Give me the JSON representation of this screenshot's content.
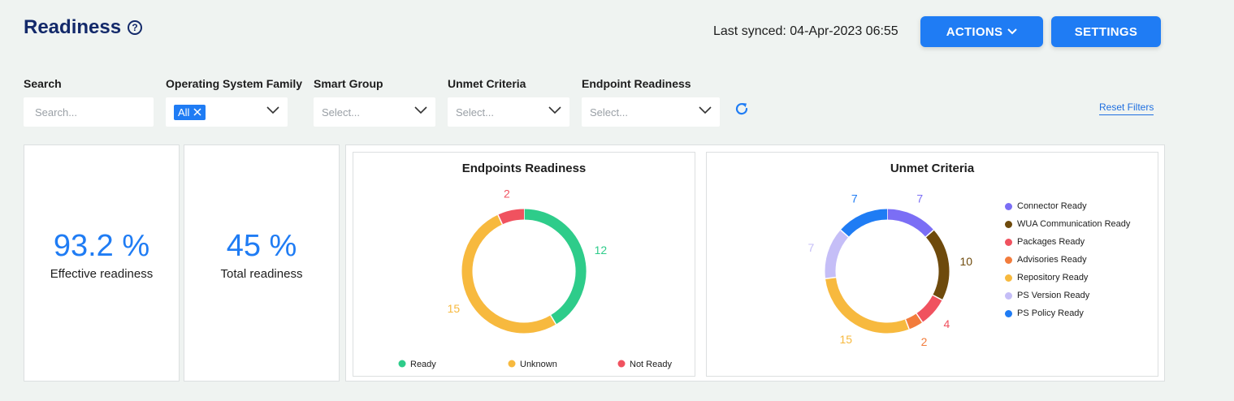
{
  "header": {
    "title": "Readiness",
    "help_icon": "?",
    "last_synced": "Last synced: 04-Apr-2023 06:55",
    "actions_label": "ACTIONS",
    "settings_label": "SETTINGS"
  },
  "filters": {
    "search": {
      "label": "Search",
      "placeholder": "Search..."
    },
    "os_family": {
      "label": "Operating System Family",
      "selected_tag": "All"
    },
    "smart_group": {
      "label": "Smart Group",
      "placeholder": "Select..."
    },
    "unmet_criteria": {
      "label": "Unmet Criteria",
      "placeholder": "Select..."
    },
    "endpoint_readiness": {
      "label": "Endpoint Readiness",
      "placeholder": "Select..."
    },
    "reset_label": "Reset Filters"
  },
  "stats": {
    "effective": {
      "value": "93.2 %",
      "label": "Effective readiness"
    },
    "total": {
      "value": "45 %",
      "label": "Total readiness"
    }
  },
  "colors": {
    "accent": "#1f7cf4",
    "title": "#13296a"
  },
  "chart_data": [
    {
      "type": "pie",
      "title": "Endpoints Readiness",
      "categories": [
        "Ready",
        "Unknown",
        "Not Ready"
      ],
      "values": [
        12,
        15,
        2
      ],
      "colors": [
        "#2ecc8a",
        "#f7b93e",
        "#f0525f"
      ],
      "legend": "bottom"
    },
    {
      "type": "pie",
      "title": "Unmet Criteria",
      "categories": [
        "Connector Ready",
        "WUA Communication Ready",
        "Packages Ready",
        "Advisories Ready",
        "Repository Ready",
        "PS Version Ready",
        "PS Policy Ready"
      ],
      "values": [
        7,
        10,
        4,
        2,
        15,
        7,
        7
      ],
      "colors": [
        "#7b6ef5",
        "#6e4a0c",
        "#f0525f",
        "#f27c3c",
        "#f7b93e",
        "#c5bef7",
        "#1f7cf4"
      ],
      "legend": "right"
    }
  ]
}
